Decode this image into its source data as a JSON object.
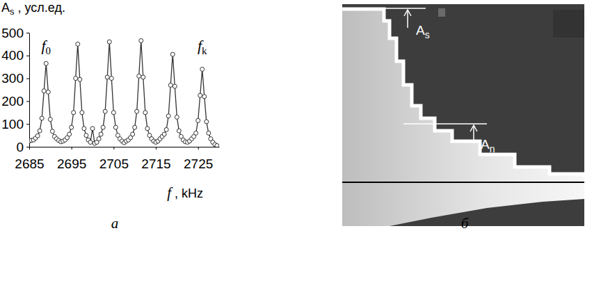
{
  "chart_data": {
    "type": "line",
    "panel_label": "а",
    "ylabel": {
      "text": "A",
      "sub": "s",
      "rest": " , усл.ед."
    },
    "xlabel": {
      "text": "f",
      "rest": " , kHz"
    },
    "x": [
      2685,
      2685.5,
      2686,
      2686.5,
      2687,
      2687.5,
      2688,
      2688.5,
      2689,
      2689.5,
      2690,
      2690.5,
      2691,
      2691.5,
      2692,
      2692.5,
      2693,
      2693.5,
      2694,
      2694.5,
      2695,
      2695.5,
      2696,
      2696.5,
      2697,
      2697.5,
      2698,
      2698.5,
      2699,
      2699.5,
      2700,
      2700.5,
      2701,
      2701.5,
      2702,
      2702.5,
      2703,
      2703.5,
      2704,
      2704.5,
      2705,
      2705.5,
      2706,
      2706.5,
      2707,
      2707.5,
      2708,
      2708.5,
      2709,
      2709.5,
      2710,
      2710.5,
      2711,
      2711.5,
      2712,
      2712.5,
      2713,
      2713.5,
      2714,
      2714.5,
      2715,
      2715.5,
      2716,
      2716.5,
      2717,
      2717.5,
      2718,
      2718.5,
      2719,
      2719.5,
      2720,
      2720.5,
      2721,
      2721.5,
      2722,
      2722.5,
      2723,
      2723.5,
      2724,
      2724.5,
      2725,
      2725.5,
      2726,
      2726.5,
      2727,
      2727.5,
      2728,
      2728.5,
      2729,
      2729.5
    ],
    "series": [
      {
        "color": "#333333",
        "marker": "circle",
        "line_style": "solid",
        "values": [
          25,
          28,
          30,
          38,
          48,
          70,
          125,
          245,
          365,
          240,
          120,
          68,
          45,
          35,
          28,
          22,
          25,
          30,
          40,
          55,
          85,
          150,
          300,
          450,
          295,
          150,
          80,
          50,
          30,
          20,
          80,
          15,
          20,
          35,
          55,
          85,
          155,
          305,
          460,
          300,
          150,
          85,
          50,
          35,
          25,
          18,
          25,
          30,
          40,
          55,
          85,
          155,
          310,
          465,
          305,
          150,
          80,
          50,
          35,
          25,
          20,
          25,
          35,
          45,
          55,
          75,
          135,
          270,
          405,
          265,
          130,
          70,
          45,
          30,
          22,
          20,
          25,
          35,
          45,
          60,
          115,
          225,
          340,
          220,
          110,
          60,
          35,
          20,
          10,
          5
        ]
      }
    ],
    "xlim": [
      2685,
      2730
    ],
    "xticks": [
      2685,
      2695,
      2705,
      2715,
      2725
    ],
    "ylim": [
      0,
      500
    ],
    "yticks": [
      0,
      100,
      200,
      300,
      400,
      500
    ],
    "grid": false,
    "annotations": [
      {
        "text": "f",
        "sub": "0",
        "x": 2689,
        "y": 420
      },
      {
        "text": "f",
        "sub": "k",
        "x": 2726,
        "y": 420
      }
    ]
  },
  "image_panel": {
    "panel_label": "б",
    "annotations": [
      {
        "text": "A",
        "sub": "s"
      },
      {
        "text": "A",
        "sub": "n"
      }
    ]
  }
}
